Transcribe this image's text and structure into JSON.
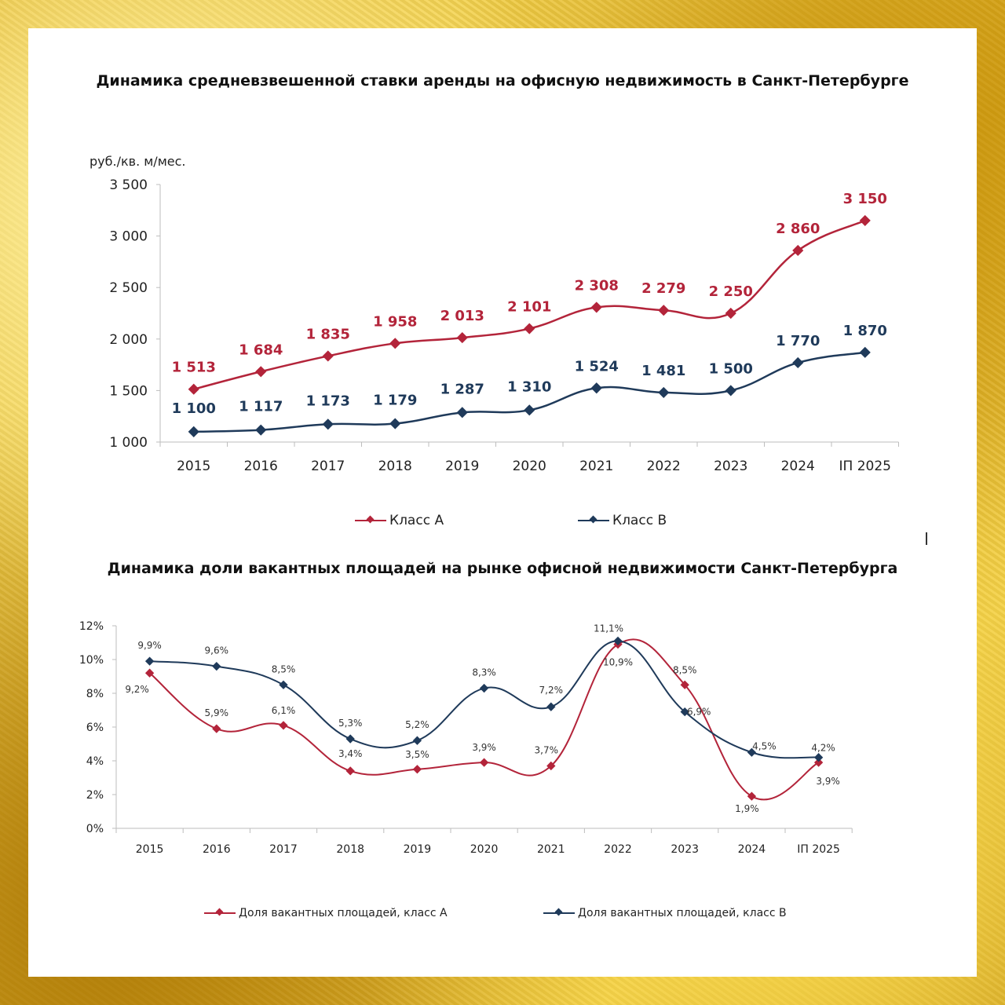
{
  "chart_data": [
    {
      "type": "line",
      "title": "Динамика средневзвешенной ставки аренды на офисную недвижимость в Санкт-Петербурге",
      "ylabel": "руб./кв. м/мес.",
      "categories": [
        "2015",
        "2016",
        "2017",
        "2018",
        "2019",
        "2020",
        "2021",
        "2022",
        "2023",
        "2024",
        "IП 2025"
      ],
      "ylim": [
        1000,
        3500
      ],
      "yticks": [
        "1 000",
        "1 500",
        "2 000",
        "2 500",
        "3 000",
        "3 500"
      ],
      "ytick_values": [
        1000,
        1500,
        2000,
        2500,
        3000,
        3500
      ],
      "grid": false,
      "legend_position": "bottom",
      "series": [
        {
          "name": "Класс A",
          "color": "#b3243a",
          "values": [
            1513,
            1684,
            1835,
            1958,
            2013,
            2101,
            2308,
            2279,
            2250,
            2860,
            3150
          ],
          "labels": [
            "1 513",
            "1 684",
            "1 835",
            "1 958",
            "2 013",
            "2 101",
            "2 308",
            "2 279",
            "2 250",
            "2 860",
            "3 150"
          ]
        },
        {
          "name": "Класс B",
          "color": "#1f3a5a",
          "values": [
            1100,
            1117,
            1173,
            1179,
            1287,
            1310,
            1524,
            1481,
            1500,
            1770,
            1870
          ],
          "labels": [
            "1 100",
            "1 117",
            "1 173",
            "1 179",
            "1 287",
            "1 310",
            "1 524",
            "1 481",
            "1 500",
            "1 770",
            "1 870"
          ]
        }
      ]
    },
    {
      "type": "line",
      "title": "Динамика доли вакантных площадей на рынке офисной недвижимости Санкт-Петербурга",
      "categories": [
        "2015",
        "2016",
        "2017",
        "2018",
        "2019",
        "2020",
        "2021",
        "2022",
        "2023",
        "2024",
        "IП 2025"
      ],
      "ylim": [
        0,
        12
      ],
      "yticks": [
        "0%",
        "2%",
        "4%",
        "6%",
        "8%",
        "10%",
        "12%"
      ],
      "ytick_values": [
        0,
        2,
        4,
        6,
        8,
        10,
        12
      ],
      "grid": false,
      "legend_position": "bottom",
      "series": [
        {
          "name": "Доля вакантных площадей, класс А",
          "color": "#b3243a",
          "values": [
            9.2,
            5.9,
            6.1,
            3.4,
            3.5,
            3.9,
            3.7,
            10.9,
            8.5,
            1.9,
            3.9
          ],
          "labels": [
            "9,2%",
            "5,9%",
            "6,1%",
            "3,4%",
            "3,5%",
            "3,9%",
            "3,7%",
            "10,9%",
            "8,5%",
            "1,9%",
            "3,9%"
          ]
        },
        {
          "name": "Доля вакантных площадей, класс В",
          "color": "#1f3a5a",
          "values": [
            9.9,
            9.6,
            8.5,
            5.3,
            5.2,
            8.3,
            7.2,
            11.1,
            6.9,
            4.5,
            4.2
          ],
          "labels": [
            "9,9%",
            "9,6%",
            "8,5%",
            "5,3%",
            "5,2%",
            "8,3%",
            "7,2%",
            "11,1%",
            "6,9%",
            "4,5%",
            "4,2%"
          ]
        }
      ]
    }
  ]
}
